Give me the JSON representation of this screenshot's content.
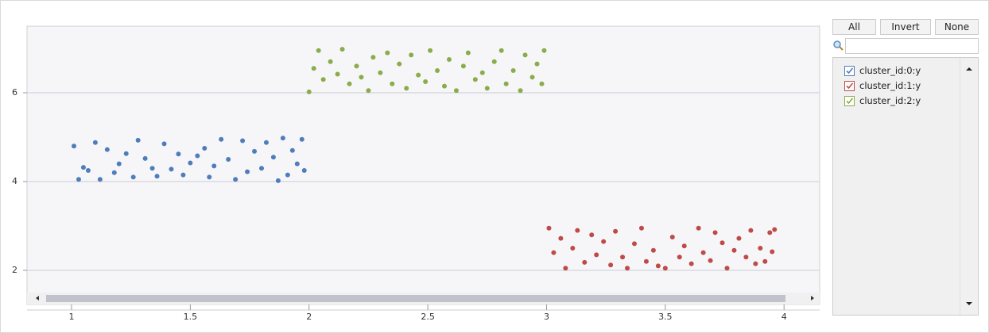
{
  "chart_data": {
    "type": "scatter",
    "xlim": [
      0.8125,
      4.15
    ],
    "ylim": [
      1.5,
      7.5
    ],
    "xticks": [
      1,
      1.5,
      2,
      2.5,
      3,
      3.5,
      4
    ],
    "yticks": [
      2,
      4,
      6
    ],
    "grid": true,
    "series": [
      {
        "name": "cluster_id:0:y",
        "color": "#4f7dba",
        "x": [
          1.01,
          1.03,
          1.05,
          1.07,
          1.1,
          1.12,
          1.15,
          1.18,
          1.2,
          1.23,
          1.26,
          1.28,
          1.31,
          1.34,
          1.36,
          1.39,
          1.42,
          1.45,
          1.47,
          1.5,
          1.53,
          1.56,
          1.58,
          1.6,
          1.63,
          1.66,
          1.69,
          1.72,
          1.74,
          1.77,
          1.8,
          1.82,
          1.85,
          1.87,
          1.89,
          1.91,
          1.93,
          1.95,
          1.97,
          1.98
        ],
        "values": [
          4.8,
          4.05,
          4.32,
          4.25,
          4.88,
          4.05,
          4.72,
          4.2,
          4.4,
          4.63,
          4.1,
          4.93,
          4.52,
          4.3,
          4.12,
          4.85,
          4.28,
          4.62,
          4.15,
          4.42,
          4.58,
          4.75,
          4.1,
          4.35,
          4.95,
          4.5,
          4.05,
          4.92,
          4.22,
          4.68,
          4.3,
          4.88,
          4.55,
          4.02,
          4.98,
          4.15,
          4.7,
          4.4,
          4.95,
          4.25
        ]
      },
      {
        "name": "cluster_id:1:y",
        "color": "#bf4b48",
        "x": [
          3.01,
          3.03,
          3.06,
          3.08,
          3.11,
          3.13,
          3.16,
          3.19,
          3.21,
          3.24,
          3.27,
          3.29,
          3.32,
          3.34,
          3.37,
          3.4,
          3.42,
          3.45,
          3.47,
          3.5,
          3.53,
          3.56,
          3.58,
          3.61,
          3.64,
          3.66,
          3.69,
          3.71,
          3.74,
          3.76,
          3.79,
          3.81,
          3.84,
          3.86,
          3.88,
          3.9,
          3.92,
          3.94,
          3.95,
          3.96
        ],
        "values": [
          2.95,
          2.4,
          2.72,
          2.05,
          2.5,
          2.9,
          2.18,
          2.8,
          2.35,
          2.65,
          2.12,
          2.88,
          2.3,
          2.05,
          2.6,
          2.95,
          2.2,
          2.45,
          2.1,
          2.05,
          2.75,
          2.3,
          2.55,
          2.15,
          2.95,
          2.4,
          2.22,
          2.85,
          2.62,
          2.05,
          2.45,
          2.72,
          2.3,
          2.9,
          2.15,
          2.5,
          2.2,
          2.85,
          2.42,
          2.92
        ]
      },
      {
        "name": "cluster_id:2:y",
        "color": "#8aac4b",
        "x": [
          2.0,
          2.02,
          2.04,
          2.06,
          2.09,
          2.12,
          2.14,
          2.17,
          2.2,
          2.22,
          2.25,
          2.27,
          2.3,
          2.33,
          2.35,
          2.38,
          2.41,
          2.43,
          2.46,
          2.49,
          2.51,
          2.54,
          2.57,
          2.59,
          2.62,
          2.65,
          2.67,
          2.7,
          2.73,
          2.75,
          2.78,
          2.81,
          2.83,
          2.86,
          2.89,
          2.91,
          2.94,
          2.96,
          2.98,
          2.99
        ],
        "values": [
          6.02,
          6.55,
          6.95,
          6.3,
          6.7,
          6.42,
          6.98,
          6.2,
          6.6,
          6.35,
          6.05,
          6.8,
          6.45,
          6.9,
          6.2,
          6.65,
          6.1,
          6.85,
          6.4,
          6.25,
          6.95,
          6.5,
          6.15,
          6.75,
          6.05,
          6.6,
          6.9,
          6.3,
          6.45,
          6.1,
          6.7,
          6.95,
          6.2,
          6.5,
          6.05,
          6.85,
          6.35,
          6.65,
          6.2,
          6.95
        ]
      }
    ]
  },
  "controls": {
    "buttons": [
      "All",
      "Invert",
      "None"
    ]
  }
}
